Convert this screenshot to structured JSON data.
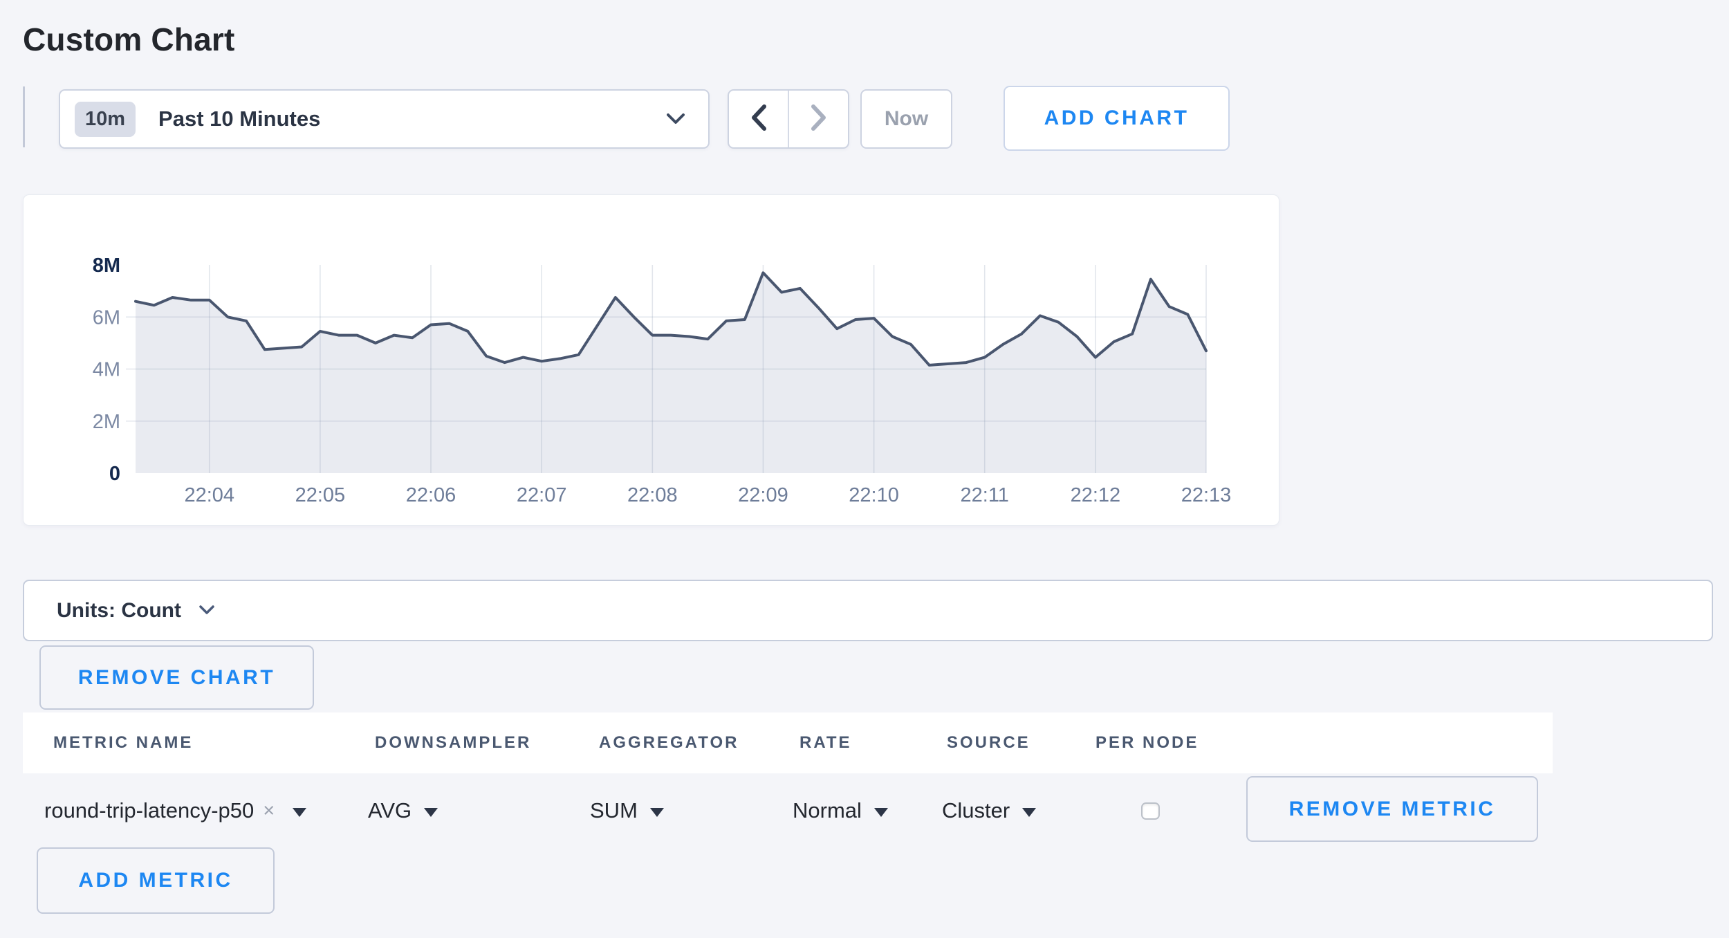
{
  "header": {
    "title": "Custom Chart"
  },
  "toolbar": {
    "range_badge": "10m",
    "range_label": "Past 10 Minutes",
    "now_label": "Now",
    "add_chart_label": "ADD CHART"
  },
  "chart_data": {
    "type": "area",
    "title": "",
    "xlabel": "",
    "ylabel": "",
    "unit": "Count",
    "grid": true,
    "legend": false,
    "ylim_millions": [
      0,
      8
    ],
    "y_ticks": [
      {
        "label": "8M",
        "value_millions": 8,
        "bold": true,
        "gridline": false
      },
      {
        "label": "6M",
        "value_millions": 6,
        "bold": false,
        "gridline": true
      },
      {
        "label": "4M",
        "value_millions": 4,
        "bold": false,
        "gridline": true
      },
      {
        "label": "2M",
        "value_millions": 2,
        "bold": false,
        "gridline": true
      },
      {
        "label": "0",
        "value_millions": 0,
        "bold": true,
        "gridline": false
      }
    ],
    "x_ticks": [
      "22:04",
      "22:05",
      "22:06",
      "22:07",
      "22:08",
      "22:09",
      "22:10",
      "22:11",
      "22:12",
      "22:13"
    ],
    "first_tick_point_index": 4,
    "points_per_tick": 6,
    "series": [
      {
        "name": "round-trip-latency-p50",
        "start_time": "22:03:20",
        "end_time": "22:13:00",
        "interval_seconds": 10,
        "values_millions": [
          6.6,
          6.45,
          6.75,
          6.65,
          6.65,
          6.0,
          5.85,
          4.75,
          4.8,
          4.85,
          5.45,
          5.3,
          5.3,
          5.0,
          5.3,
          5.2,
          5.7,
          5.75,
          5.45,
          4.5,
          4.25,
          4.45,
          4.3,
          4.4,
          4.55,
          5.65,
          6.75,
          6.0,
          5.3,
          5.3,
          5.25,
          5.15,
          5.85,
          5.9,
          7.7,
          6.95,
          7.1,
          6.35,
          5.55,
          5.9,
          5.95,
          5.25,
          4.95,
          4.15,
          4.2,
          4.25,
          4.45,
          4.95,
          5.35,
          6.05,
          5.8,
          5.25,
          4.45,
          5.05,
          5.35,
          7.45,
          6.4,
          6.1,
          4.7
        ]
      }
    ],
    "colors": {
      "line": "#49566f",
      "fill": "#e9ebf1",
      "gridline": "rgba(125,140,170,0.22)",
      "tick_label": "#6e7d99",
      "tick_label_bold": "#14294e"
    }
  },
  "units_bar": {
    "label": "Units: Count"
  },
  "chart_actions": {
    "remove_chart_label": "REMOVE CHART",
    "add_metric_label": "ADD METRIC"
  },
  "metrics_table": {
    "columns": [
      "METRIC NAME",
      "DOWNSAMPLER",
      "AGGREGATOR",
      "RATE",
      "SOURCE",
      "PER NODE"
    ],
    "rows": [
      {
        "metric_name": "round-trip-latency-p50",
        "clear_icon": "×",
        "downsampler": "AVG",
        "aggregator": "SUM",
        "rate": "Normal",
        "source": "Cluster",
        "per_node_checked": false,
        "remove_label": "REMOVE METRIC"
      }
    ]
  }
}
